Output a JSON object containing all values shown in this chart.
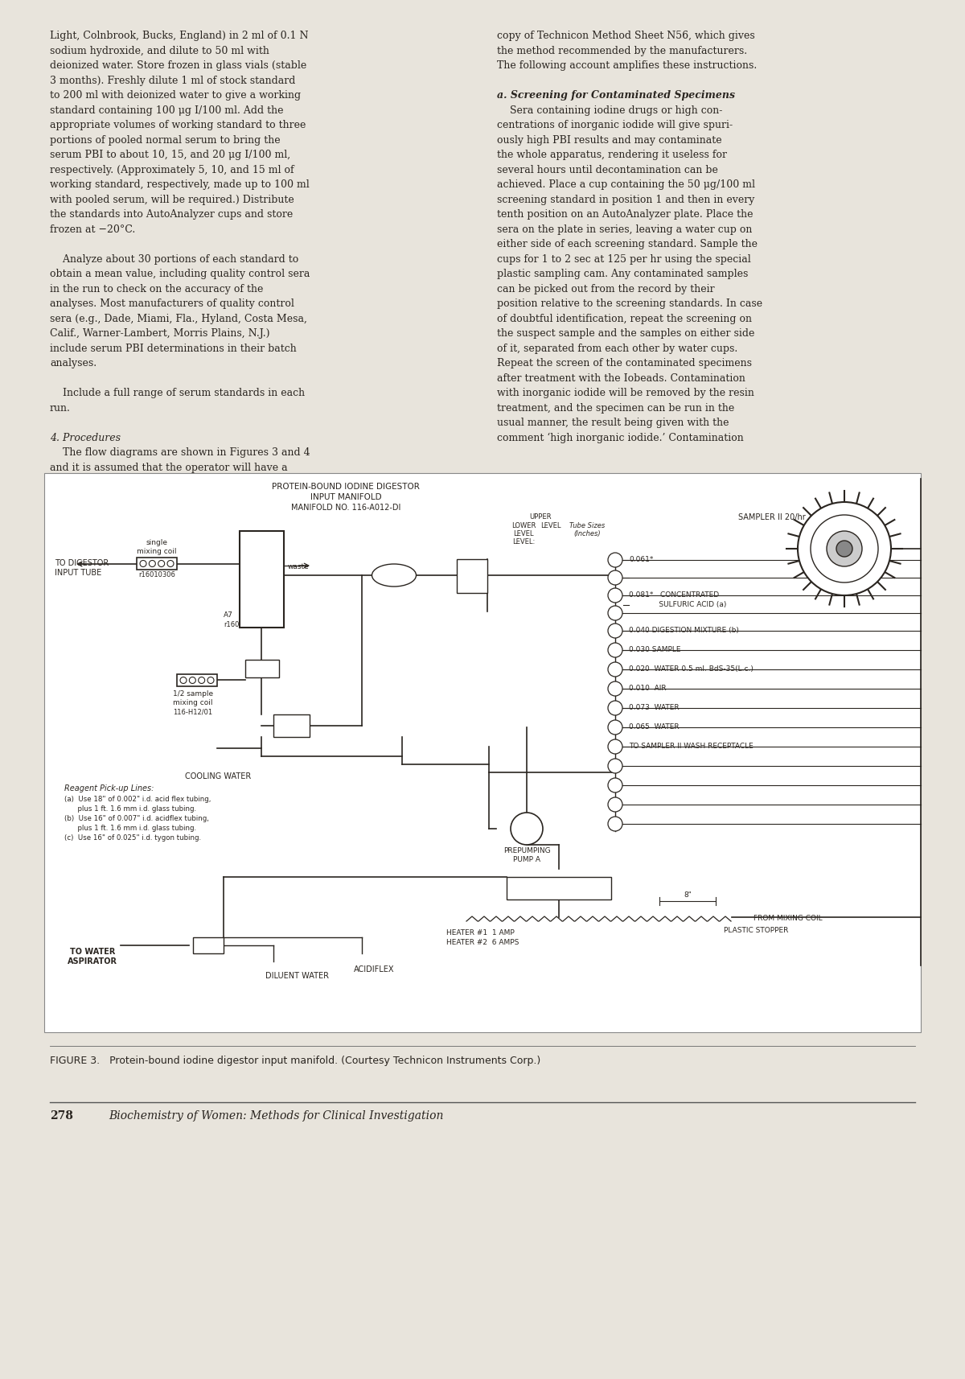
{
  "page_bg": "#e8e4dc",
  "text_color": "#2a2520",
  "title": "Biochemistry of Women: Methods for Clinical Investigation",
  "page_number": "278",
  "figure_caption": "FIGURE 3.   Protein-bound iodine digestor input manifold. (Courtesy Technicon Instruments Corp.)",
  "left_col_lines": [
    "Light, Colnbrook, Bucks, England) in 2 ml of 0.1 N",
    "sodium hydroxide, and dilute to 50 ml with",
    "deionized water. Store frozen in glass vials (stable",
    "3 months). Freshly dilute 1 ml of stock standard",
    "to 200 ml with deionized water to give a working",
    "standard containing 100 μg I/100 ml. Add the",
    "appropriate volumes of working standard to three",
    "portions of pooled normal serum to bring the",
    "serum PBI to about 10, 15, and 20 μg I/100 ml,",
    "respectively. (Approximately 5, 10, and 15 ml of",
    "working standard, respectively, made up to 100 ml",
    "with pooled serum, will be required.) Distribute",
    "the standards into AutoAnalyzer cups and store",
    "frozen at −20°C.",
    "",
    "    Analyze about 30 portions of each standard to",
    "obtain a mean value, including quality control sera",
    "in the run to check on the accuracy of the",
    "analyses. Most manufacturers of quality control",
    "sera (e.g., Dade, Miami, Fla., Hyland, Costa Mesa,",
    "Calif., Warner-Lambert, Morris Plains, N.J.)",
    "include serum PBI determinations in their batch",
    "analyses.",
    "",
    "    Include a full range of serum standards in each",
    "run.",
    "",
    "4. Procedures",
    "    The flow diagrams are shown in Figures 3 and 4",
    "and it is assumed that the operator will have a"
  ],
  "right_col_lines": [
    "copy of Technicon Method Sheet N56, which gives",
    "the method recommended by the manufacturers.",
    "The following account amplifies these instructions.",
    "",
    "a. Screening for Contaminated Specimens",
    "    Sera containing iodine drugs or high con-",
    "centrations of inorganic iodide will give spuri-",
    "ously high PBI results and may contaminate",
    "the whole apparatus, rendering it useless for",
    "several hours until decontamination can be",
    "achieved. Place a cup containing the 50 μg/100 ml",
    "screening standard in position 1 and then in every",
    "tenth position on an AutoAnalyzer plate. Place the",
    "sera on the plate in series, leaving a water cup on",
    "either side of each screening standard. Sample the",
    "cups for 1 to 2 sec at 125 per hr using the special",
    "plastic sampling cam. Any contaminated samples",
    "can be picked out from the record by their",
    "position relative to the screening standards. In case",
    "of doubtful identification, repeat the screening on",
    "the suspect sample and the samples on either side",
    "of it, separated from each other by water cups.",
    "Repeat the screen of the contaminated specimens",
    "after treatment with the Iobeads. Contamination",
    "with inorganic iodide will be removed by the resin",
    "treatment, and the specimen can be run in the",
    "usual manner, the result being given with the",
    "comment ‘high inorganic iodide.’ Contamination"
  ]
}
